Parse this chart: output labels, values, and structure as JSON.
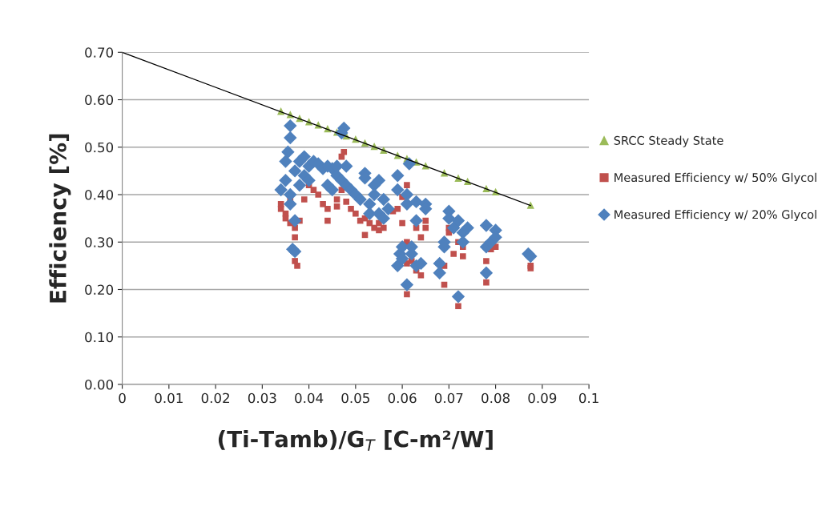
{
  "chart_data": {
    "type": "scatter",
    "xlabel": "(Ti-Tamb)/G$_{T}$ [C-m²/W]",
    "ylabel": "Efficiency [%]",
    "xlim": [
      0,
      0.1
    ],
    "xticks": [
      0,
      0.01,
      0.02,
      0.03,
      0.04,
      0.05,
      0.06,
      0.07,
      0.08,
      0.09,
      0.1
    ],
    "ylim": [
      0,
      0.7
    ],
    "yticks": [
      {
        "value": 0,
        "label": "0.00"
      },
      {
        "value": 0.1,
        "label": "0.10"
      },
      {
        "value": 0.2,
        "label": "0.20"
      },
      {
        "value": 0.3,
        "label": "0.30"
      },
      {
        "value": 0.4,
        "label": "0.40"
      },
      {
        "value": 0.5,
        "label": "0.50"
      },
      {
        "value": 0.6,
        "label": "0.60"
      },
      {
        "value": 0.7,
        "label": "0.70"
      }
    ],
    "grid": "y",
    "legend": "right",
    "series": [
      {
        "name": "SRCC Steady State",
        "color": "#9bbb59",
        "marker": "triangle",
        "x": [
          0.034,
          0.036,
          0.038,
          0.04,
          0.042,
          0.044,
          0.046,
          0.048,
          0.05,
          0.052,
          0.054,
          0.056,
          0.059,
          0.061,
          0.063,
          0.065,
          0.069,
          0.072,
          0.074,
          0.078,
          0.08,
          0.0875
        ],
        "values": [
          0.576,
          0.569,
          0.561,
          0.554,
          0.547,
          0.539,
          0.532,
          0.524,
          0.517,
          0.509,
          0.502,
          0.494,
          0.483,
          0.476,
          0.469,
          0.461,
          0.446,
          0.435,
          0.428,
          0.413,
          0.406,
          0.378
        ]
      },
      {
        "name": "Measured Efficiency w/ 50% Glycol",
        "color": "#c0504d",
        "marker": "square",
        "x": [
          0.034,
          0.034,
          0.035,
          0.035,
          0.036,
          0.036,
          0.037,
          0.0375,
          0.037,
          0.037,
          0.038,
          0.039,
          0.04,
          0.041,
          0.042,
          0.043,
          0.044,
          0.044,
          0.046,
          0.046,
          0.047,
          0.0475,
          0.047,
          0.048,
          0.049,
          0.05,
          0.051,
          0.052,
          0.052,
          0.053,
          0.054,
          0.055,
          0.055,
          0.056,
          0.058,
          0.059,
          0.06,
          0.06,
          0.061,
          0.061,
          0.061,
          0.061,
          0.062,
          0.063,
          0.063,
          0.064,
          0.064,
          0.065,
          0.065,
          0.069,
          0.069,
          0.07,
          0.07,
          0.071,
          0.072,
          0.072,
          0.073,
          0.073,
          0.078,
          0.078,
          0.079,
          0.08,
          0.0875,
          0.0875
        ],
        "values": [
          0.37,
          0.38,
          0.36,
          0.35,
          0.34,
          0.39,
          0.26,
          0.25,
          0.31,
          0.33,
          0.345,
          0.39,
          0.42,
          0.41,
          0.4,
          0.38,
          0.37,
          0.345,
          0.39,
          0.375,
          0.48,
          0.49,
          0.41,
          0.385,
          0.37,
          0.36,
          0.345,
          0.315,
          0.35,
          0.34,
          0.33,
          0.325,
          0.34,
          0.33,
          0.365,
          0.37,
          0.395,
          0.34,
          0.42,
          0.3,
          0.255,
          0.19,
          0.26,
          0.24,
          0.33,
          0.31,
          0.23,
          0.345,
          0.33,
          0.21,
          0.25,
          0.33,
          0.32,
          0.275,
          0.165,
          0.3,
          0.27,
          0.29,
          0.26,
          0.215,
          0.285,
          0.29,
          0.25,
          0.245
        ]
      },
      {
        "name": "Measured Efficiency w/ 20% Glycol",
        "color": "#4f81bd",
        "marker": "diamond",
        "x": [
          0.034,
          0.035,
          0.035,
          0.0355,
          0.036,
          0.036,
          0.036,
          0.036,
          0.0365,
          0.037,
          0.037,
          0.037,
          0.038,
          0.038,
          0.039,
          0.039,
          0.04,
          0.04,
          0.041,
          0.042,
          0.043,
          0.044,
          0.044,
          0.045,
          0.045,
          0.046,
          0.046,
          0.047,
          0.0475,
          0.047,
          0.048,
          0.048,
          0.049,
          0.05,
          0.051,
          0.052,
          0.052,
          0.053,
          0.053,
          0.054,
          0.054,
          0.055,
          0.055,
          0.056,
          0.056,
          0.057,
          0.059,
          0.059,
          0.059,
          0.0595,
          0.06,
          0.06,
          0.061,
          0.061,
          0.061,
          0.0615,
          0.062,
          0.062,
          0.063,
          0.063,
          0.063,
          0.064,
          0.065,
          0.065,
          0.068,
          0.068,
          0.069,
          0.069,
          0.07,
          0.07,
          0.071,
          0.072,
          0.072,
          0.073,
          0.073,
          0.074,
          0.078,
          0.078,
          0.078,
          0.079,
          0.08,
          0.08,
          0.087,
          0.0875
        ],
        "values": [
          0.41,
          0.43,
          0.47,
          0.49,
          0.52,
          0.545,
          0.4,
          0.38,
          0.285,
          0.28,
          0.345,
          0.45,
          0.47,
          0.42,
          0.48,
          0.44,
          0.46,
          0.43,
          0.47,
          0.465,
          0.455,
          0.46,
          0.42,
          0.41,
          0.455,
          0.44,
          0.46,
          0.43,
          0.54,
          0.53,
          0.46,
          0.42,
          0.41,
          0.4,
          0.39,
          0.445,
          0.435,
          0.38,
          0.36,
          0.42,
          0.4,
          0.43,
          0.36,
          0.39,
          0.35,
          0.37,
          0.44,
          0.41,
          0.25,
          0.275,
          0.29,
          0.265,
          0.4,
          0.38,
          0.21,
          0.465,
          0.29,
          0.275,
          0.385,
          0.25,
          0.345,
          0.255,
          0.38,
          0.37,
          0.255,
          0.235,
          0.29,
          0.3,
          0.365,
          0.35,
          0.33,
          0.345,
          0.185,
          0.32,
          0.3,
          0.33,
          0.235,
          0.29,
          0.335,
          0.3,
          0.325,
          0.31,
          0.275,
          0.27
        ]
      },
      {
        "type": "line",
        "color": "#000000",
        "marker": "none",
        "x": [
          0,
          0.0875
        ],
        "values": [
          0.7,
          0.377
        ]
      }
    ]
  }
}
